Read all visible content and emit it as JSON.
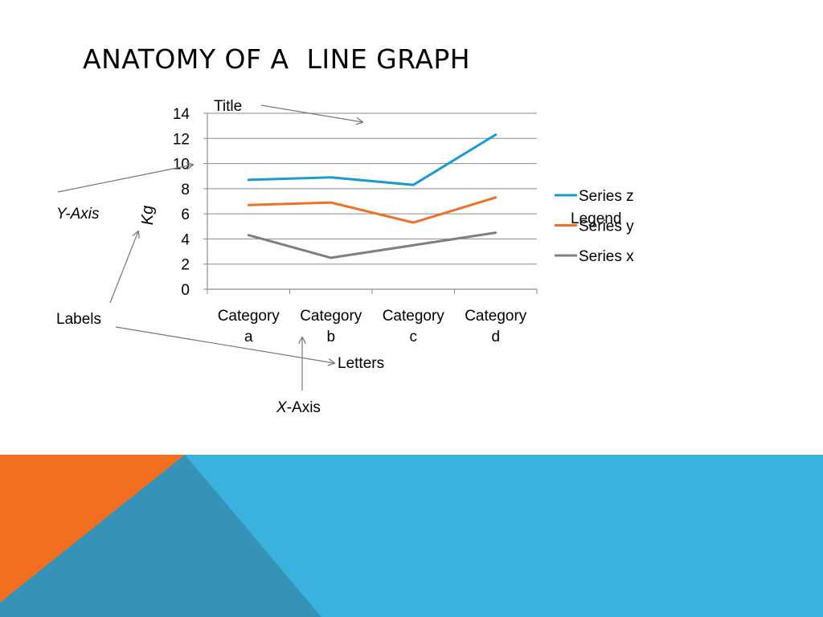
{
  "slide": {
    "title": "ANATOMY OF A  LINE GRAPH"
  },
  "annotations": {
    "title": "Title",
    "y_axis": "Y-Axis",
    "labels": "Labels",
    "letters": "Letters",
    "x_axis_var": "X",
    "x_axis_rest": "-Axis",
    "legend": "Legend"
  },
  "colors": {
    "orange": "#F26F21",
    "blue": "#3BB1DE",
    "steel": "#3692B6",
    "grid": "#8C8C8C",
    "arrow": "#777777"
  },
  "chart_data": {
    "type": "line",
    "title": "",
    "xlabel": "",
    "ylabel": "Kg",
    "ylim": [
      0,
      14
    ],
    "yticks": [
      0,
      2,
      4,
      6,
      8,
      10,
      12,
      14
    ],
    "grid": true,
    "legend_position": "right",
    "categories": [
      "Category a",
      "Category b",
      "Category c",
      "Category d"
    ],
    "category_lines": [
      [
        "Category",
        "a"
      ],
      [
        "Category",
        "b"
      ],
      [
        "Category",
        "c"
      ],
      [
        "Category",
        "d"
      ]
    ],
    "series": [
      {
        "name": "Series z",
        "values": [
          8.7,
          8.9,
          8.3,
          12.3
        ],
        "color": "#1B9AD2"
      },
      {
        "name": "Series y",
        "values": [
          6.7,
          6.9,
          5.3,
          7.3
        ],
        "color": "#F07126"
      },
      {
        "name": "Series x",
        "values": [
          4.3,
          2.5,
          3.5,
          4.5
        ],
        "color": "#7F7F7F"
      }
    ]
  }
}
